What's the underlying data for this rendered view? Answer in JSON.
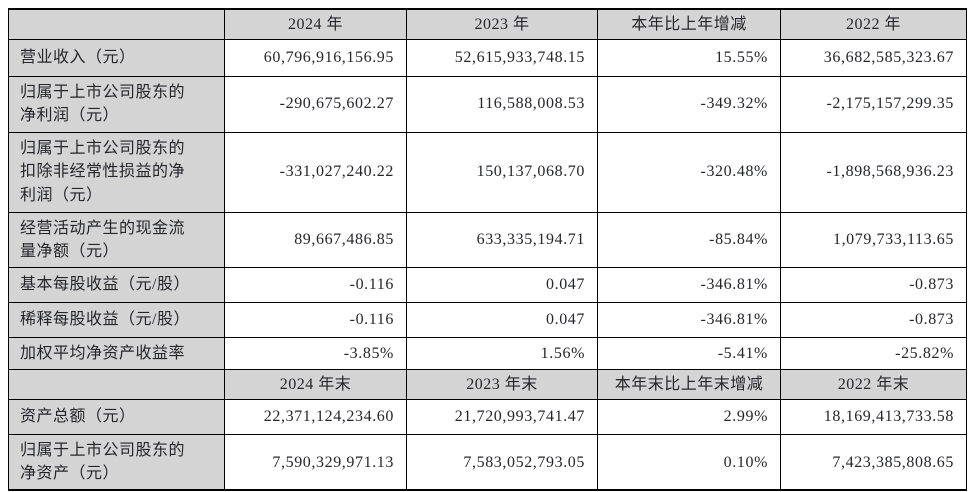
{
  "table": {
    "description": "Key accounting data and financial indicators summary table",
    "rows": [
      {
        "type": "header",
        "cells": [
          "",
          "2024 年",
          "2023 年",
          "本年比上年增减",
          "2022 年"
        ]
      },
      {
        "type": "data",
        "cells": [
          "营业收入（元）",
          "60,796,916,156.95",
          "52,615,933,748.15",
          "15.55%",
          "36,682,585,323.67"
        ]
      },
      {
        "type": "data",
        "cells": [
          "归属于上市公司股东的净利润（元）",
          "-290,675,602.27",
          "116,588,008.53",
          "-349.32%",
          "-2,175,157,299.35"
        ]
      },
      {
        "type": "data",
        "cells": [
          "归属于上市公司股东的扣除非经常性损益的净利润（元）",
          "-331,027,240.22",
          "150,137,068.70",
          "-320.48%",
          "-1,898,568,936.23"
        ]
      },
      {
        "type": "data",
        "cells": [
          "经营活动产生的现金流量净额（元）",
          "89,667,486.85",
          "633,335,194.71",
          "-85.84%",
          "1,079,733,113.65"
        ]
      },
      {
        "type": "data",
        "cells": [
          "基本每股收益（元/股）",
          "-0.116",
          "0.047",
          "-346.81%",
          "-0.873"
        ]
      },
      {
        "type": "data",
        "cells": [
          "稀释每股收益（元/股）",
          "-0.116",
          "0.047",
          "-346.81%",
          "-0.873"
        ]
      },
      {
        "type": "data",
        "cells": [
          "加权平均净资产收益率",
          "-3.85%",
          "1.56%",
          "-5.41%",
          "-25.82%"
        ]
      },
      {
        "type": "header",
        "cells": [
          "",
          "2024 年末",
          "2023 年末",
          "本年末比上年末增减",
          "2022 年末"
        ]
      },
      {
        "type": "data",
        "cells": [
          "资产总额（元）",
          "22,371,124,234.60",
          "21,720,993,741.47",
          "2.99%",
          "18,169,413,733.58"
        ]
      },
      {
        "type": "data",
        "cells": [
          "归属于上市公司股东的净资产（元）",
          "7,590,329,971.13",
          "7,583,052,793.05",
          "0.10%",
          "7,423,385,808.65"
        ]
      }
    ],
    "colors": {
      "header_background": "#d4d4d4",
      "label_background": "#d4d4d4",
      "cell_background": "#ffffff",
      "border": "#000000",
      "text": "#24262b"
    }
  }
}
